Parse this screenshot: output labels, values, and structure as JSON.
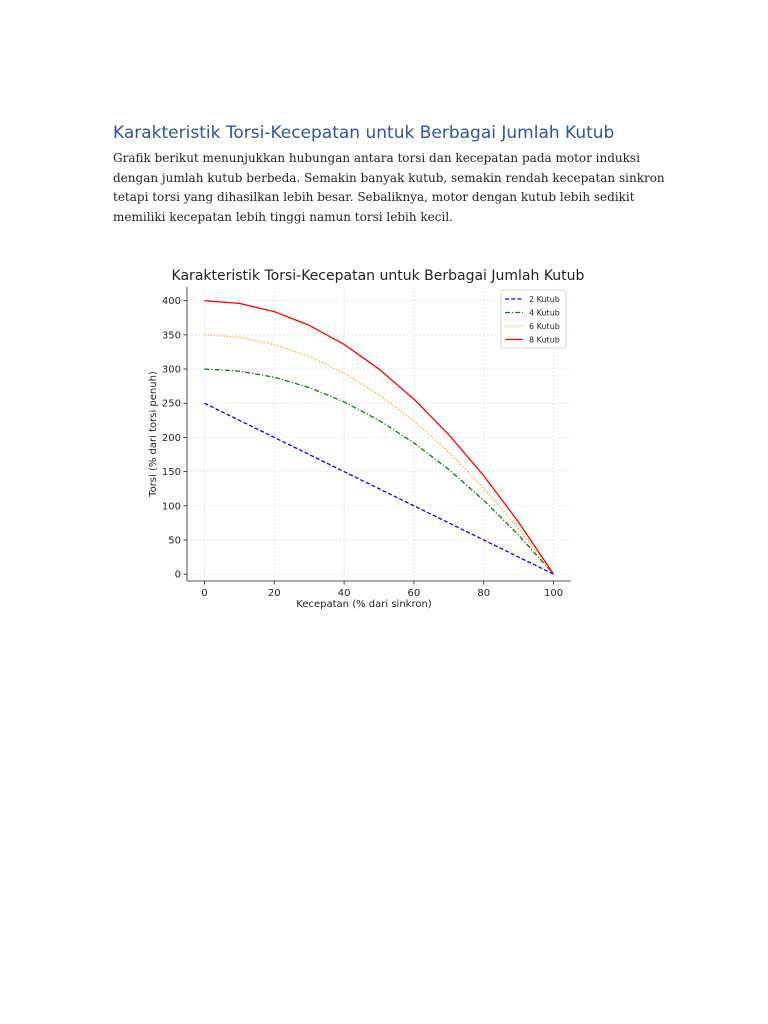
{
  "document": {
    "heading": "Karakteristik Torsi-Kecepatan untuk Berbagai Jumlah Kutub",
    "paragraph_lines": [
      "Grafik berikut menunjukkan hubungan antara torsi dan kecepatan pada motor induksi",
      "dengan jumlah kutub berbeda. Semakin banyak kutub, semakin rendah kecepatan sinkron",
      "tetapi torsi yang dihasilkan lebih besar. Sebaliknya, motor dengan kutub lebih sedikit",
      "memiliki kecepatan lebih tinggi namun torsi lebih kecil."
    ]
  },
  "chart_data": {
    "type": "line",
    "title": "Karakteristik Torsi-Kecepatan untuk Berbagai Jumlah Kutub",
    "xlabel": "Kecepatan (% dari sinkron)",
    "ylabel": "Torsi (% dari torsi penuh)",
    "xlim": [
      -5,
      105
    ],
    "ylim": [
      -10,
      420
    ],
    "xticks": [
      0,
      20,
      40,
      60,
      80,
      100
    ],
    "yticks": [
      0,
      50,
      100,
      150,
      200,
      250,
      300,
      350,
      400
    ],
    "grid": true,
    "legend_position": "top-right",
    "x": [
      0,
      10,
      20,
      30,
      40,
      50,
      60,
      70,
      80,
      90,
      100
    ],
    "series": [
      {
        "name": "2 Kutub",
        "color": "#0000ff",
        "dash": "dashed",
        "values": [
          250,
          225,
          200,
          175,
          150,
          125,
          100,
          75,
          50,
          25,
          0
        ]
      },
      {
        "name": "4 Kutub",
        "color": "#008000",
        "dash": "dashdot",
        "values": [
          300,
          297,
          288,
          273,
          252,
          225,
          192,
          153,
          108,
          57,
          0
        ]
      },
      {
        "name": "6 Kutub",
        "color": "#ffa500",
        "dash": "dotted",
        "values": [
          350,
          346.5,
          336,
          318.5,
          294,
          262.5,
          224,
          178.5,
          126,
          66.5,
          0
        ]
      },
      {
        "name": "8 Kutub",
        "color": "#ff0000",
        "dash": "solid",
        "values": [
          400,
          396,
          384,
          364,
          336,
          300,
          256,
          204,
          144,
          76,
          0
        ]
      }
    ]
  }
}
